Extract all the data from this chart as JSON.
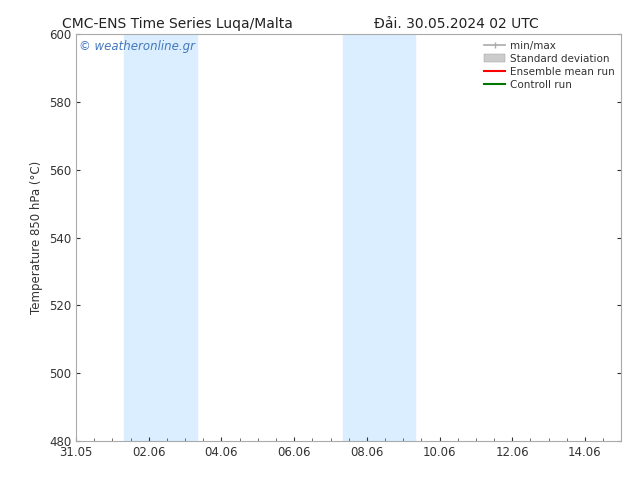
{
  "title_left": "CMC-ENS Time Series Luqa/Malta",
  "title_right": "Đải. 30.05.2024 02 UTC",
  "ylabel": "Temperature 850 hPa (°C)",
  "xlim_min": 0,
  "xlim_max": 15,
  "ylim_min": 480,
  "ylim_max": 600,
  "yticks": [
    480,
    500,
    520,
    540,
    560,
    580,
    600
  ],
  "xtick_labels": [
    "31.05",
    "02.06",
    "04.06",
    "06.06",
    "08.06",
    "10.06",
    "12.06",
    "14.06"
  ],
  "xtick_positions": [
    0,
    2,
    4,
    6,
    8,
    10,
    12,
    14
  ],
  "background_color": "#ffffff",
  "plot_bg_color": "#ffffff",
  "shaded_bands": [
    {
      "x_start": 1.33,
      "x_end": 3.33,
      "color": "#daeeff"
    },
    {
      "x_start": 7.33,
      "x_end": 9.33,
      "color": "#daeeff"
    }
  ],
  "watermark_text": "© weatheronline.gr",
  "watermark_color": "#4477bb",
  "legend_items": [
    {
      "label": "min/max",
      "color": "#aaaaaa",
      "lw": 1.2,
      "ls": "-"
    },
    {
      "label": "Standard deviation",
      "color": "#cccccc",
      "lw": 8,
      "ls": "-"
    },
    {
      "label": "Ensemble mean run",
      "color": "#ff0000",
      "lw": 1.5,
      "ls": "-"
    },
    {
      "label": "Controll run",
      "color": "#007700",
      "lw": 1.5,
      "ls": "-"
    }
  ],
  "spine_color": "#aaaaaa",
  "tick_color": "#333333",
  "font_size_title": 10,
  "font_size_axis": 8.5,
  "font_size_ticks": 8.5,
  "font_size_legend": 7.5,
  "font_size_watermark": 8.5
}
